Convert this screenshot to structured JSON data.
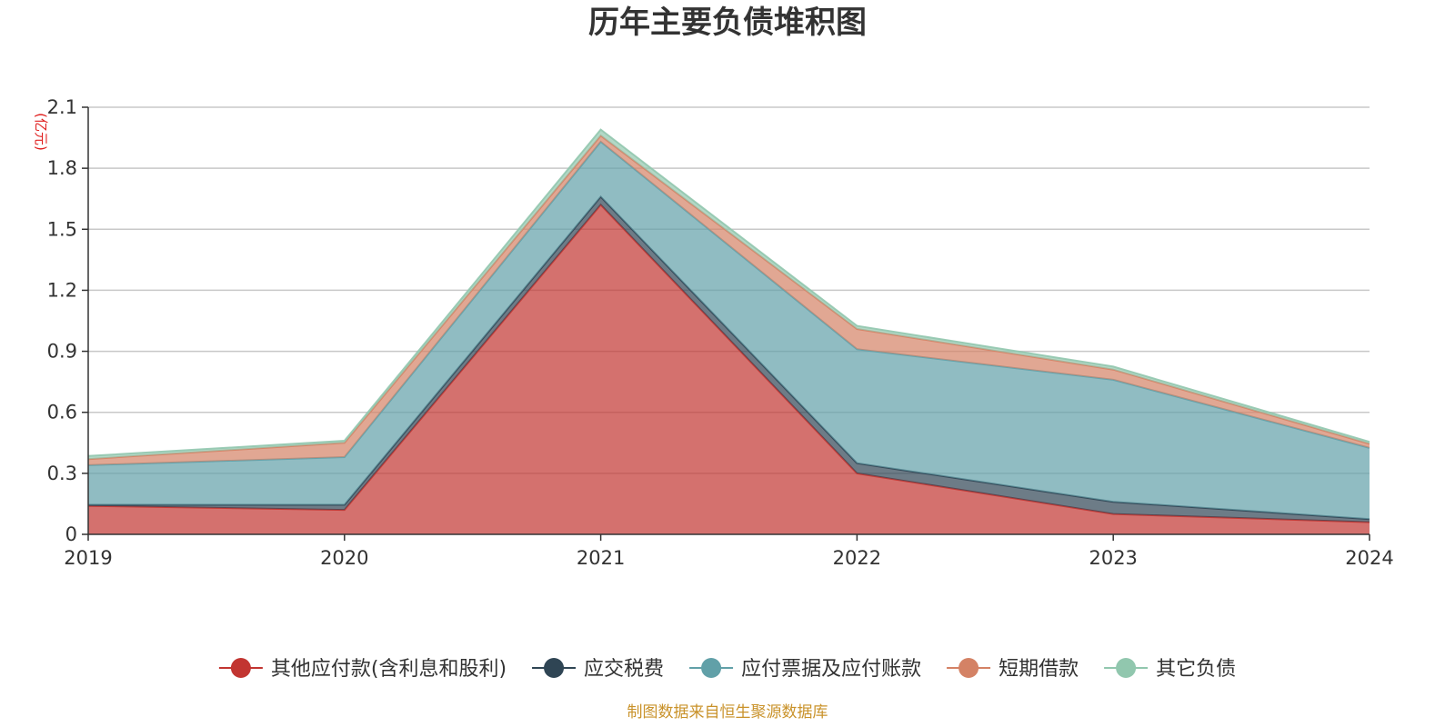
{
  "chart_data": {
    "type": "area",
    "stacked": true,
    "title": "历年主要负债堆积图",
    "unit_label": "(亿元)",
    "x": [
      "2019",
      "2020",
      "2021",
      "2022",
      "2023",
      "2024"
    ],
    "y_ticks": [
      "0",
      "0.3",
      "0.6",
      "0.9",
      "1.2",
      "1.5",
      "1.8",
      "2.1"
    ],
    "ylim": [
      0,
      2.1
    ],
    "grid": true,
    "legend_position": "bottom",
    "series": [
      {
        "name": "其他应付款(含利息和股利)",
        "color": "#c23531",
        "values": [
          0.14,
          0.12,
          1.62,
          0.3,
          0.1,
          0.06
        ]
      },
      {
        "name": "应交税费",
        "color": "#2f4554",
        "values": [
          0.005,
          0.025,
          0.04,
          0.05,
          0.06,
          0.015
        ]
      },
      {
        "name": "应付票据及应付账款",
        "color": "#61a0a8",
        "values": [
          0.195,
          0.235,
          0.27,
          0.56,
          0.6,
          0.35
        ]
      },
      {
        "name": "短期借款",
        "color": "#d48265",
        "values": [
          0.03,
          0.07,
          0.03,
          0.1,
          0.05,
          0.02
        ]
      },
      {
        "name": "其它负债",
        "color": "#91c7ae",
        "values": [
          0.015,
          0.01,
          0.03,
          0.015,
          0.015,
          0.01
        ]
      }
    ],
    "footer": "制图数据来自恒生聚源数据库"
  }
}
